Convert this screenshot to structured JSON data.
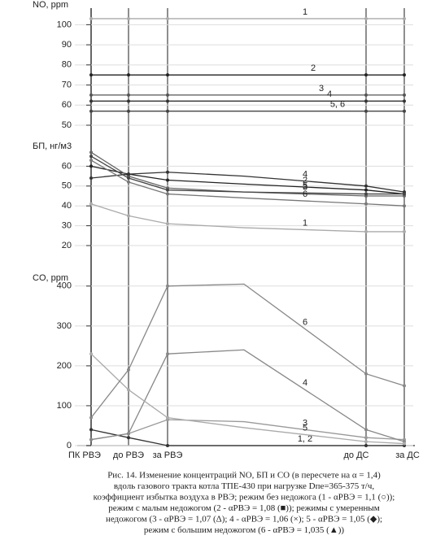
{
  "chart_data": [
    {
      "type": "line",
      "title": "NO, ppm",
      "ylim": [
        50,
        105
      ],
      "yticks": [
        50,
        60,
        70,
        80,
        90,
        100
      ],
      "series": [
        {
          "name": "1",
          "color": "#aaaaaa",
          "values": [
            103,
            103,
            103,
            103,
            103,
            103
          ]
        },
        {
          "name": "2",
          "color": "#222222",
          "values": [
            75,
            75,
            75,
            75,
            75,
            75
          ]
        },
        {
          "name": "3",
          "color": "#555555",
          "values": [
            65,
            65,
            65,
            65,
            65,
            65
          ]
        },
        {
          "name": "4",
          "color": "#333333",
          "values": [
            62,
            62,
            62,
            62,
            62,
            62
          ]
        },
        {
          "name": "5, 6",
          "color": "#444444",
          "values": [
            57,
            57,
            57,
            57,
            57,
            57
          ]
        }
      ]
    },
    {
      "type": "line",
      "title": "БП, нг/м3",
      "ylim": [
        20,
        70
      ],
      "yticks": [
        20,
        30,
        40,
        50,
        60
      ],
      "series": [
        {
          "name": "1",
          "color": "#aaaaaa",
          "values": [
            41,
            35,
            31,
            29,
            27,
            27
          ]
        },
        {
          "name": "2",
          "color": "#222222",
          "values": [
            60,
            56,
            53,
            51,
            48,
            46
          ]
        },
        {
          "name": "3",
          "color": "#666666",
          "values": [
            67,
            55,
            49,
            47,
            45,
            45
          ]
        },
        {
          "name": "4",
          "color": "#333333",
          "values": [
            54,
            56,
            57,
            55,
            50,
            47
          ]
        },
        {
          "name": "5",
          "color": "#444444",
          "values": [
            65,
            54,
            48,
            47,
            46,
            46
          ]
        },
        {
          "name": "6",
          "color": "#777777",
          "values": [
            63,
            52,
            46,
            44,
            41,
            40
          ]
        }
      ]
    },
    {
      "type": "line",
      "title": "CO, ppm",
      "ylim": [
        0,
        420
      ],
      "yticks": [
        0,
        100,
        200,
        300,
        400
      ],
      "categories": [
        "ПК РВЭ",
        "до РВЭ",
        "за РВЭ",
        null,
        "до ДС",
        "за ДС"
      ],
      "series": [
        {
          "name": "1, 2",
          "color": "#333333",
          "values": [
            40,
            20,
            0,
            0,
            0,
            0
          ]
        },
        {
          "name": "3",
          "color": "#999999",
          "values": [
            15,
            30,
            65,
            60,
            20,
            15
          ]
        },
        {
          "name": "4",
          "color": "#888888",
          "values": [
            15,
            30,
            230,
            240,
            40,
            10
          ]
        },
        {
          "name": "5",
          "color": "#aaaaaa",
          "values": [
            230,
            140,
            70,
            45,
            10,
            5
          ]
        },
        {
          "name": "6",
          "color": "#888888",
          "values": [
            70,
            190,
            400,
            405,
            180,
            150
          ]
        }
      ]
    }
  ],
  "caption": [
    "Рис. 14. Изменение концентраций NO, БП и CO (в пересчете на α = 1,4)",
    "вдоль газового тракта котла ТПЕ-430 при нагрузке Dпе=365-375 т/ч,",
    "коэффициент избытка воздуха в РВЭ; режим без недожога (1 - αРВЭ = 1,1 (○));",
    "режим с малым недожогом (2 - αРВЭ = 1,08 (■)); режимы с умеренным",
    "недожогом (3 - αРВЭ = 1,07 (Δ); 4 - αРВЭ = 1,06 (×); 5 - αРВЭ = 1,05 (◆);",
    "режим с большим недожогом (6 - αРВЭ = 1,035 (▲))"
  ]
}
